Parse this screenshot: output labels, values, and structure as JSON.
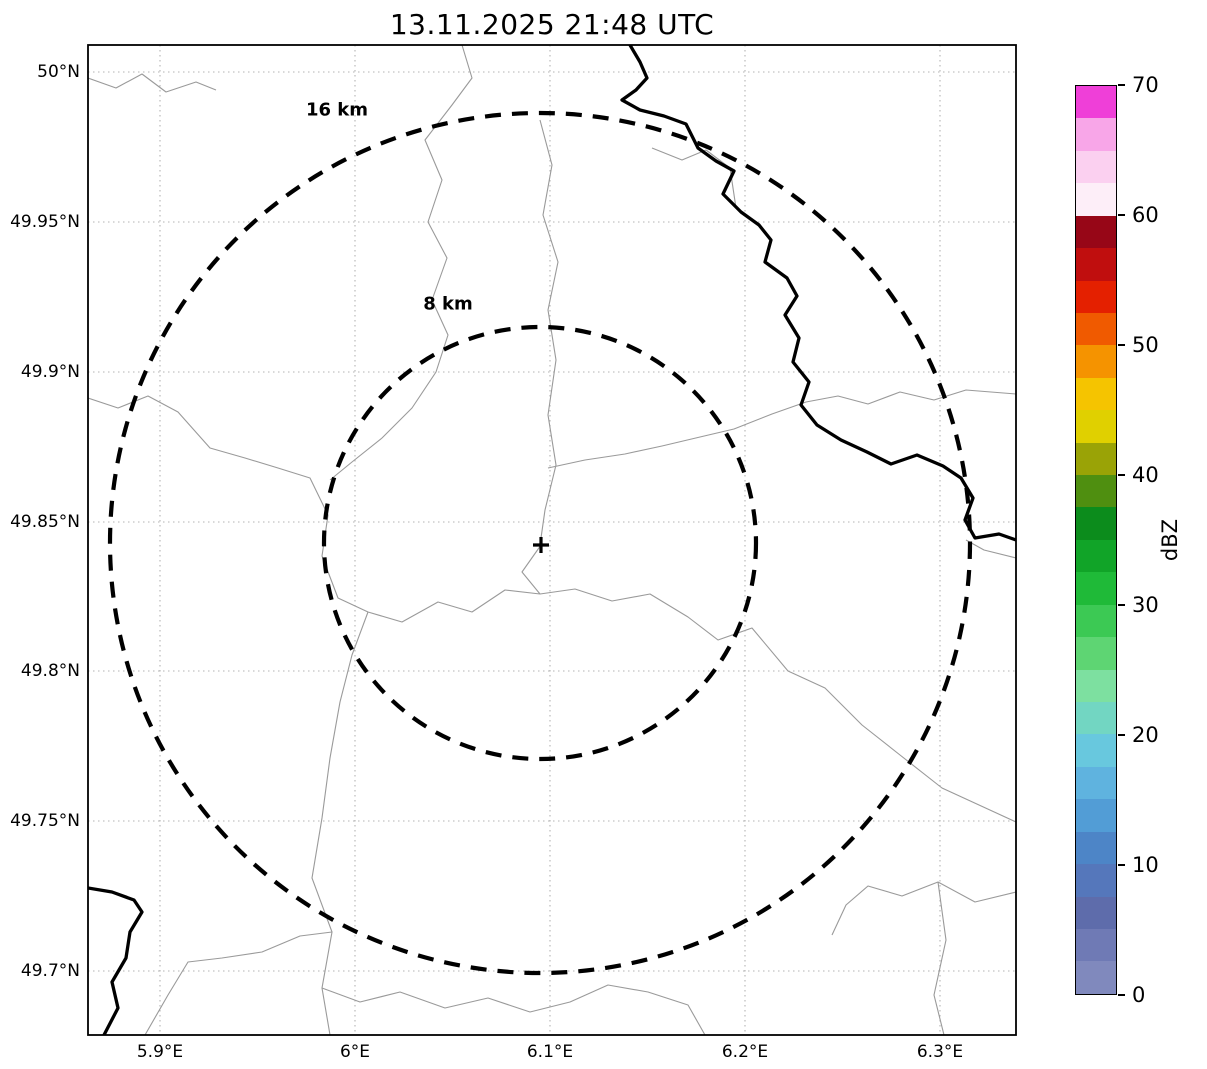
{
  "title": "13.11.2025 21:48 UTC",
  "map": {
    "lat_ticks": [
      "50°N",
      "49.95°N",
      "49.9°N",
      "49.85°N",
      "49.8°N",
      "49.75°N",
      "49.7°N"
    ],
    "lon_ticks": [
      "5.9°E",
      "6°E",
      "6.1°E",
      "6.2°E",
      "6.3°E"
    ],
    "range_rings": [
      {
        "label": "16 km",
        "radius_km": 16
      },
      {
        "label": "8 km",
        "radius_km": 8
      }
    ],
    "center_marker": "+",
    "radar_echoes": "none visible"
  },
  "colorbar": {
    "label": "dBZ",
    "min": 0,
    "max": 70,
    "tick_labels": [
      "70",
      "60",
      "50",
      "40",
      "30",
      "20",
      "10",
      "0"
    ],
    "colors_bottom_to_top": [
      "#8089bd",
      "#6f7ab5",
      "#5e6cab",
      "#5577bb",
      "#4d85c7",
      "#529dd6",
      "#5fb3df",
      "#68c8de",
      "#72d6c2",
      "#7de0a0",
      "#5ed573",
      "#3cc954",
      "#1fba38",
      "#11a428",
      "#0c8c1c",
      "#4f8f10",
      "#9aa306",
      "#e0d000",
      "#f5c400",
      "#f59300",
      "#f05a00",
      "#e42000",
      "#c00e0e",
      "#970617",
      "#fdeef8",
      "#fbd0f0",
      "#f8a6e8",
      "#ef3fd8"
    ]
  }
}
